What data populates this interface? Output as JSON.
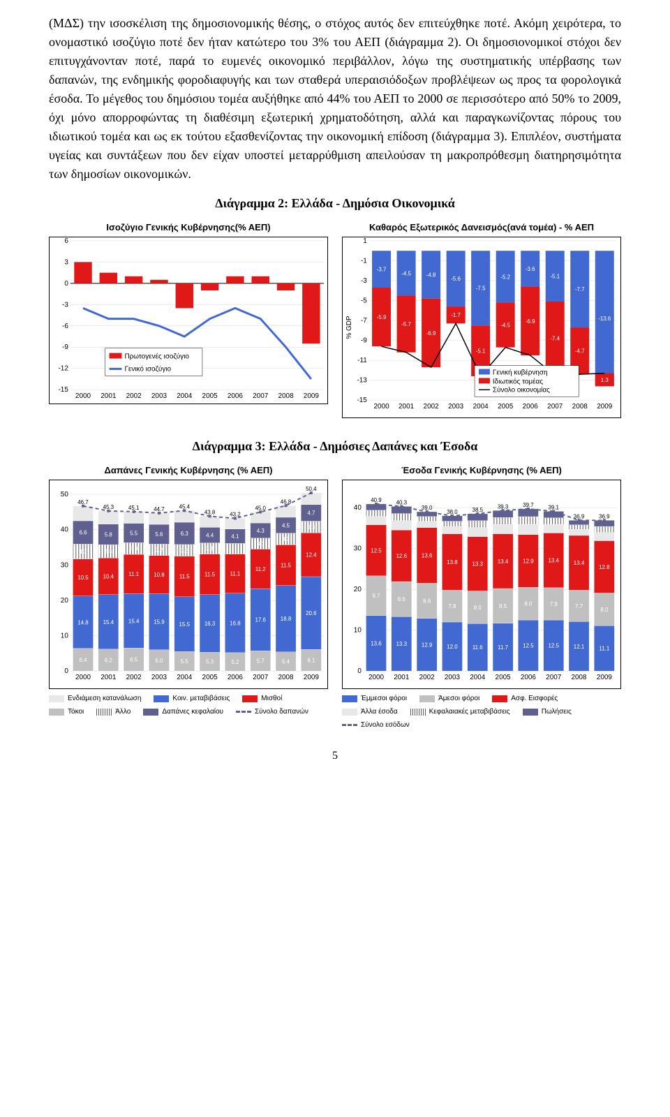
{
  "para1": "(ΜΔΣ) την ισοσκέλιση της δημοσιονομικής θέσης, ο στόχος αυτός δεν επιτεύχθηκε ποτέ. Ακόμη χειρότερα, το ονομαστικό ισοζύγιο ποτέ δεν ήταν κατώτερο του 3% του ΑΕΠ (διάγραμμα 2). Οι δημοσιονομικοί στόχοι δεν επιτυγχάνονταν ποτέ, παρά το ευμενές οικονομικό περιβάλλον, λόγω της συστηματικής υπέρβασης των δαπανών, της ενδημικής φοροδιαφυγής και των σταθερά υπεραισιόδοξων προβλέψεων ως προς τα φορολογικά έσοδα. Το μέγεθος του δημόσιου τομέα αυξήθηκε από 44% του ΑΕΠ το 2000 σε περισσότερο από 50% το 2009, όχι μόνο απορροφώντας τη διαθέσιμη εξωτερική χρηματοδότηση, αλλά και παραγκωνίζοντας πόρους του ιδιωτικού τομέα και ως εκ τούτου εξασθενίζοντας την οικονομική επίδοση (διάγραμμα 3). Επιπλέον, συστήματα υγείας και συντάξεων που δεν είχαν υποστεί μεταρρύθμιση απειλούσαν τη μακροπρόθεσμη διατηρησιμότητα των δημοσίων οικονομικών.",
  "sec2_title": "Διάγραμμα 2: Ελλάδα - Δημόσια Οικονομικά",
  "sec3_title": "Διάγραμμα 3: Ελλάδα - Δημόσιες Δαπάνες και Έσοδα",
  "page_num": "5",
  "colors": {
    "blue": "#4169d1",
    "red": "#e01818",
    "grey": "#c0c0c0",
    "dblue": "#606090",
    "ltgrey": "#e8e8e8",
    "hatch": "#888888"
  },
  "chartA": {
    "title": "Ισοζύγιο Γενικής Κυβέρνησης(% ΑΕΠ)",
    "years": [
      "2000",
      "2001",
      "2002",
      "2003",
      "2004",
      "2005",
      "2006",
      "2007",
      "2008",
      "2009"
    ],
    "yaxis": [
      6,
      3,
      0,
      -3,
      -6,
      -9,
      -12,
      -15
    ],
    "primary": [
      3,
      1.5,
      1,
      0.5,
      -3.5,
      -1,
      1,
      1,
      -1,
      -8.5
    ],
    "general": [
      -3.5,
      -5,
      -5,
      -6,
      -7.5,
      -5,
      -3.5,
      -5,
      -9,
      -13.5
    ],
    "legend": {
      "primary": "Πρωτογενές ισοζύγιο",
      "general": "Γενικό ισοζύγιο"
    }
  },
  "chartB": {
    "title": "Καθαρός Εξωτερικός Δανεισμός(ανά τομέα)  - % ΑΕΠ",
    "years": [
      "2000",
      "2001",
      "2002",
      "2003",
      "2004",
      "2005",
      "2006",
      "2007",
      "2008",
      "2009"
    ],
    "yaxis": [
      1,
      -1,
      -3,
      -5,
      -7,
      -9,
      -11,
      -13,
      -15
    ],
    "ylabel": "% GDP",
    "gov": [
      -3.7,
      -4.5,
      -4.8,
      -5.6,
      -7.5,
      -5.2,
      -3.6,
      -5.1,
      -7.7,
      -13.6
    ],
    "priv": [
      -5.9,
      -5.7,
      -6.9,
      -1.7,
      -5.1,
      -4.5,
      -6.9,
      -7.4,
      -4.7,
      1.3
    ],
    "legend": {
      "gov": "Γενική κυβέρνηση",
      "priv": "Ιδιωτικός τομέας",
      "total": "Σύνολο οικονομίας"
    }
  },
  "chartC": {
    "title": "Δαπάνες Γενικής Κυβέρνησης (% ΑΕΠ)",
    "years": [
      "2000",
      "2001",
      "2002",
      "2003",
      "2004",
      "2005",
      "2006",
      "2007",
      "2008",
      "2009"
    ],
    "yaxis": [
      0,
      10,
      20,
      30,
      40,
      50
    ],
    "totals": [
      46.7,
      45.3,
      45.1,
      44.7,
      45.4,
      43.8,
      43.2,
      45,
      46.8,
      50.4
    ],
    "s1": [
      6.4,
      6.2,
      6.5,
      6,
      5.5,
      5.3,
      5.2,
      5.7,
      5.4,
      6.1
    ],
    "s2": [
      14.8,
      15.4,
      15.4,
      15.9,
      15.5,
      16.3,
      16.8,
      17.6,
      18.8,
      20.6
    ],
    "s3": [
      10.5,
      10.4,
      11.1,
      10.8,
      11.5,
      11.5,
      11.1,
      11.2,
      11.5,
      12.4
    ],
    "s4": [
      6.6,
      5.8,
      5.5,
      5.6,
      6.3,
      4.4,
      4.1,
      4.3,
      4.5,
      4.7
    ],
    "legend": {
      "l1": "Ενδιάμεση κατανάλωση",
      "l2": "Κοιν. μεταβιβάσεις",
      "l3": "Μισθοί",
      "l4": "Τόκοι",
      "l5": "Άλλο",
      "l6": "Δαπάνες κεφαλαίου",
      "l7": "Σύνολο δαπανών"
    }
  },
  "chartD": {
    "title": "Έσοδα Γενικής Κυβέρνησης (% ΑΕΠ)",
    "years": [
      "2000",
      "2001",
      "2002",
      "2003",
      "2004",
      "2005",
      "2006",
      "2007",
      "2008",
      "2009"
    ],
    "yaxis": [
      0,
      10,
      20,
      30,
      40
    ],
    "totals": [
      40.9,
      40.3,
      39,
      38,
      38.5,
      39.3,
      39.7,
      39.1,
      36.9,
      36.9
    ],
    "s1": [
      13.6,
      13.3,
      12.9,
      12,
      11.6,
      11.7,
      12.5,
      12.5,
      12.1,
      11.1
    ],
    "s2": [
      9.7,
      8.6,
      8.6,
      7.8,
      8,
      8.5,
      8,
      7.9,
      7.7,
      8
    ],
    "s3": [
      12.5,
      12.6,
      13.6,
      13.8,
      13.3,
      13.4,
      12.9,
      13.4,
      13.4,
      12.8
    ],
    "legend": {
      "l1": "Έμμεσοι φόροι",
      "l2": "Άμεσοι φόροι",
      "l3": "Ασφ. Εισφορές",
      "l4": "Άλλα έσοδα",
      "l5": "Κεφαλαιακές μεταβιβάσεις",
      "l6": "Πωλήσεις",
      "l7": "Σύνολο εσόδων"
    }
  }
}
